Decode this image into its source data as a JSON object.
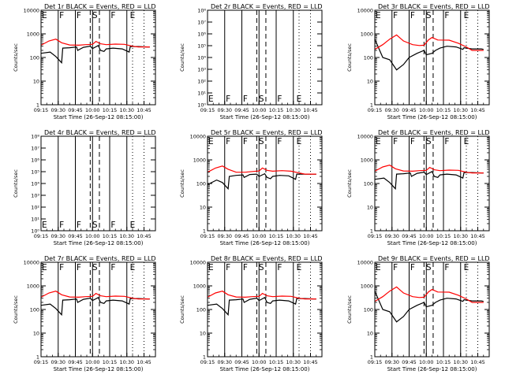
{
  "chart_data": {
    "type": "line",
    "layout": "3x3 grid of panels",
    "xlabel": "Start Time (26-Sep-12 08:15:00)",
    "ylabel": "Counts/sec",
    "x_tick_labels": [
      "09:15",
      "09:30",
      "09:45",
      "10:00",
      "10:15",
      "10:30",
      "10:45"
    ],
    "x_range_minutes_after_09_00": [
      15,
      115
    ],
    "y_scale": "log",
    "colors": {
      "events": "#000000",
      "lld": "#ff0000"
    },
    "panels": [
      {
        "title": "Det 1r BLACK = Events, RED = LLD",
        "ylim": [
          1,
          10000
        ],
        "y_tick_labels": [
          "1",
          "10",
          "100",
          "1000",
          "10000"
        ],
        "segment_labels": [
          "E",
          "F",
          "F",
          "S",
          "F",
          "E"
        ],
        "series": [
          {
            "role": "events",
            "x": [
              15,
              23,
              28,
              33,
              34,
              40,
              46,
              47,
              52,
              58,
              60,
              65,
              67,
              70,
              72,
              78,
              86,
              92,
              93,
              100,
              108,
              110
            ],
            "y": [
              150,
              170,
              110,
              60,
              250,
              260,
              280,
              200,
              270,
              300,
              240,
              320,
              200,
              180,
              230,
              250,
              230,
              170,
              290,
              290,
              280,
              280
            ]
          },
          {
            "role": "lld",
            "x": [
              15,
              22,
              28,
              33,
              40,
              48,
              54,
              60,
              63,
              67,
              72,
              80,
              88,
              95,
              100,
              105,
              110
            ],
            "y": [
              330,
              500,
              600,
              420,
              340,
              330,
              350,
              360,
              480,
              380,
              350,
              370,
              360,
              300,
              280,
              280,
              280
            ]
          }
        ]
      },
      {
        "title": "Det 2r BLACK = Events, RED = LLD",
        "ylim": [
          1,
          100000000
        ],
        "y_tick_labels": [
          "10⁰",
          "10¹",
          "10²",
          "10³",
          "10⁴",
          "10⁵",
          "10⁶",
          "10⁷",
          "10⁸"
        ],
        "segment_labels": [
          "E",
          "F",
          "F",
          "S",
          "F",
          "E"
        ],
        "series": []
      },
      {
        "title": "Det 3r BLACK = Events, RED = LLD",
        "ylim": [
          1,
          10000
        ],
        "y_tick_labels": [
          "1",
          "10",
          "100",
          "1000",
          "10000"
        ],
        "segment_labels": [
          "E",
          "F",
          "F",
          "S",
          "F",
          "E"
        ],
        "series": [
          {
            "role": "events",
            "x": [
              15,
              22,
              28,
              34,
              40,
              45,
              52,
              58,
              60,
              65,
              68,
              72,
              78,
              86,
              92,
              93,
              100,
              108,
              110
            ],
            "y": [
              600,
              100,
              80,
              30,
              50,
              100,
              150,
              200,
              130,
              150,
              200,
              250,
              300,
              280,
              220,
              260,
              230,
              230,
              220
            ]
          },
          {
            "role": "lld",
            "x": [
              15,
              22,
              28,
              34,
              40,
              48,
              54,
              58,
              62,
              65,
              70,
              80,
              88,
              95,
              100,
              105,
              110
            ],
            "y": [
              220,
              350,
              600,
              900,
              500,
              350,
              320,
              330,
              560,
              700,
              550,
              540,
              400,
              280,
              200,
              200,
              200
            ]
          }
        ]
      },
      {
        "title": "Det 4r BLACK = Events, RED = LLD",
        "ylim": [
          1,
          100000000
        ],
        "y_tick_labels": [
          "10⁰",
          "10¹",
          "10²",
          "10³",
          "10⁴",
          "10⁵",
          "10⁶",
          "10⁷",
          "10⁸"
        ],
        "segment_labels": [
          "E",
          "F",
          "F",
          "S",
          "F",
          "E"
        ],
        "series": []
      },
      {
        "title": "Det 5r BLACK = Events, RED = LLD",
        "ylim": [
          1,
          10000
        ],
        "y_tick_labels": [
          "1",
          "10",
          "100",
          "1000",
          "10000"
        ],
        "segment_labels": [
          "E",
          "F",
          "F",
          "S",
          "F",
          "E"
        ],
        "series": [
          {
            "role": "events",
            "x": [
              15,
              23,
              28,
              33,
              34,
              40,
              46,
              47,
              52,
              58,
              60,
              65,
              67,
              70,
              72,
              78,
              86,
              92,
              93,
              100,
              108,
              110
            ],
            "y": [
              90,
              140,
              110,
              60,
              200,
              220,
              230,
              180,
              240,
              250,
              200,
              260,
              180,
              160,
              200,
              220,
              210,
              150,
              250,
              250,
              250,
              250
            ]
          },
          {
            "role": "lld",
            "x": [
              15,
              22,
              28,
              33,
              40,
              48,
              54,
              60,
              63,
              67,
              72,
              80,
              88,
              95,
              100,
              105,
              110
            ],
            "y": [
              300,
              450,
              550,
              400,
              300,
              300,
              320,
              340,
              450,
              360,
              330,
              350,
              330,
              280,
              250,
              250,
              250
            ]
          }
        ]
      },
      {
        "title": "Det 6r BLACK = Events, RED = LLD",
        "ylim": [
          1,
          10000
        ],
        "y_tick_labels": [
          "1",
          "10",
          "100",
          "1000",
          "10000"
        ],
        "segment_labels": [
          "E",
          "F",
          "F",
          "S",
          "F",
          "E"
        ],
        "series": [
          {
            "role": "events",
            "x": [
              15,
              23,
              28,
              33,
              34,
              40,
              46,
              47,
              52,
              58,
              60,
              65,
              67,
              70,
              72,
              78,
              86,
              92,
              93,
              100,
              108,
              110
            ],
            "y": [
              150,
              170,
              110,
              60,
              250,
              260,
              280,
              200,
              270,
              300,
              240,
              320,
              200,
              180,
              230,
              250,
              230,
              170,
              290,
              290,
              280,
              280
            ]
          },
          {
            "role": "lld",
            "x": [
              15,
              22,
              28,
              33,
              40,
              48,
              54,
              60,
              63,
              67,
              72,
              80,
              88,
              95,
              100,
              105,
              110
            ],
            "y": [
              330,
              500,
              600,
              420,
              340,
              330,
              350,
              360,
              480,
              380,
              350,
              370,
              360,
              300,
              280,
              280,
              280
            ]
          }
        ]
      },
      {
        "title": "Det 7r BLACK = Events, RED = LLD",
        "ylim": [
          1,
          10000
        ],
        "y_tick_labels": [
          "1",
          "10",
          "100",
          "1000",
          "10000"
        ],
        "segment_labels": [
          "E",
          "F",
          "F",
          "S",
          "F",
          "E"
        ],
        "series": [
          {
            "role": "events",
            "x": [
              15,
              23,
              28,
              33,
              34,
              40,
              46,
              47,
              52,
              58,
              60,
              65,
              67,
              70,
              72,
              78,
              86,
              92,
              93,
              100,
              108,
              110
            ],
            "y": [
              150,
              170,
              110,
              60,
              250,
              260,
              280,
              200,
              270,
              300,
              240,
              320,
              200,
              180,
              230,
              250,
              230,
              170,
              290,
              290,
              280,
              280
            ]
          },
          {
            "role": "lld",
            "x": [
              15,
              22,
              28,
              33,
              40,
              48,
              54,
              60,
              63,
              67,
              72,
              80,
              88,
              95,
              100,
              105,
              110
            ],
            "y": [
              330,
              500,
              600,
              420,
              340,
              330,
              350,
              360,
              480,
              380,
              350,
              370,
              360,
              300,
              280,
              280,
              280
            ]
          }
        ]
      },
      {
        "title": "Det 8r BLACK = Events, RED = LLD",
        "ylim": [
          1,
          10000
        ],
        "y_tick_labels": [
          "1",
          "10",
          "100",
          "1000",
          "10000"
        ],
        "segment_labels": [
          "E",
          "F",
          "F",
          "S",
          "F",
          "E"
        ],
        "series": [
          {
            "role": "events",
            "x": [
              15,
              23,
              28,
              33,
              34,
              40,
              46,
              47,
              52,
              58,
              60,
              65,
              67,
              70,
              72,
              78,
              86,
              92,
              93,
              100,
              108,
              110
            ],
            "y": [
              150,
              170,
              110,
              60,
              250,
              260,
              280,
              200,
              270,
              300,
              240,
              320,
              200,
              180,
              230,
              250,
              230,
              170,
              290,
              290,
              280,
              280
            ]
          },
          {
            "role": "lld",
            "x": [
              15,
              22,
              28,
              33,
              40,
              48,
              54,
              60,
              63,
              67,
              72,
              80,
              88,
              95,
              100,
              105,
              110
            ],
            "y": [
              330,
              500,
              600,
              420,
              340,
              330,
              350,
              360,
              480,
              380,
              350,
              370,
              360,
              300,
              280,
              280,
              280
            ]
          }
        ]
      },
      {
        "title": "Det 9r BLACK = Events, RED = LLD",
        "ylim": [
          1,
          10000
        ],
        "y_tick_labels": [
          "1",
          "10",
          "100",
          "1000",
          "10000"
        ],
        "segment_labels": [
          "E",
          "F",
          "F",
          "S",
          "F",
          "E"
        ],
        "series": [
          {
            "role": "events",
            "x": [
              15,
              22,
              28,
              34,
              40,
              45,
              52,
              58,
              60,
              65,
              68,
              72,
              78,
              86,
              92,
              93,
              100,
              108,
              110
            ],
            "y": [
              600,
              100,
              80,
              30,
              50,
              100,
              150,
              200,
              130,
              150,
              200,
              250,
              300,
              280,
              220,
              260,
              230,
              230,
              220
            ]
          },
          {
            "role": "lld",
            "x": [
              15,
              22,
              28,
              34,
              40,
              48,
              54,
              58,
              62,
              65,
              70,
              80,
              88,
              95,
              100,
              105,
              110
            ],
            "y": [
              220,
              350,
              600,
              900,
              500,
              350,
              320,
              330,
              560,
              700,
              550,
              540,
              400,
              280,
              200,
              200,
              200
            ]
          }
        ]
      }
    ]
  }
}
